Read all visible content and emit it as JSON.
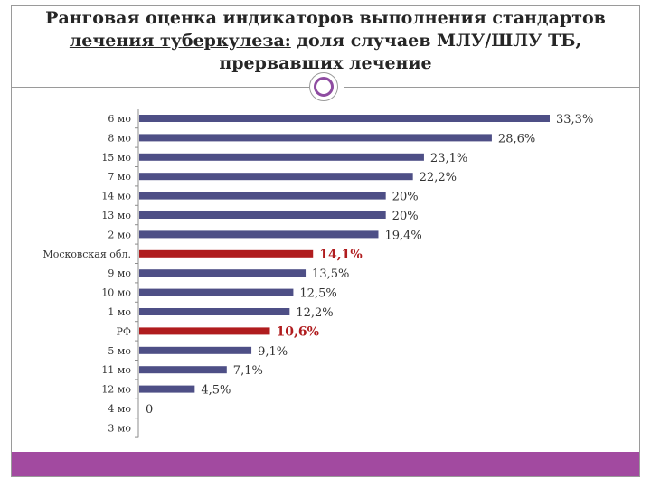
{
  "title": {
    "line1": "Ранговая оценка индикаторов выполнения стандартов",
    "line2_underlined": "лечения туберкулеза:",
    "line2_rest": " доля случаев МЛУ/ШЛУ ТБ,",
    "line3": "прервавших лечение"
  },
  "colors": {
    "bar": "#4e4f86",
    "highlight": "#b01c1e",
    "footer": "#a24aa0",
    "ring": "#8e4ca1"
  },
  "chart_data": {
    "type": "bar",
    "orientation": "horizontal",
    "categories": [
      "6 мо",
      "8 мо",
      "15 мо",
      "7 мо",
      "14 мо",
      "13 мо",
      "2 мо",
      "Московская обл.",
      "9 мо",
      "10 мо",
      "1 мо",
      "РФ",
      "5 мо",
      "11 мо",
      "12 мо",
      "4 мо",
      "3 мо"
    ],
    "values": [
      33.3,
      28.6,
      23.1,
      22.2,
      20,
      20,
      19.4,
      14.1,
      13.5,
      12.5,
      12.2,
      10.6,
      9.1,
      7.1,
      4.5,
      0,
      0
    ],
    "labels": [
      "33,3%",
      "28,6%",
      "23,1%",
      "22,2%",
      "20%",
      "20%",
      "19,4%",
      "14,1%",
      "13,5%",
      "12,5%",
      "12,2%",
      "10,6%",
      "9,1%",
      "7,1%",
      "4,5%",
      "0",
      ""
    ],
    "highlighted": [
      "Московская обл.",
      "РФ"
    ],
    "xlim": [
      0,
      33.3
    ],
    "grid": false,
    "legend": "none"
  }
}
